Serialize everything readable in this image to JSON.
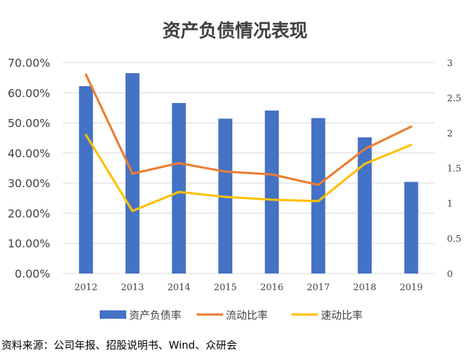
{
  "chart_data": {
    "type": "bar",
    "title": "资产负债情况表现",
    "categories": [
      "2012",
      "2013",
      "2014",
      "2015",
      "2016",
      "2017",
      "2018",
      "2019"
    ],
    "y_left": {
      "ylim": [
        0,
        70
      ],
      "ticks": [
        "0.00%",
        "10.00%",
        "20.00%",
        "30.00%",
        "40.00%",
        "50.00%",
        "60.00%",
        "70.00%"
      ]
    },
    "y_right": {
      "ylim": [
        0,
        3
      ],
      "ticks": [
        "0",
        "0.5",
        "1",
        "1.5",
        "2",
        "2.5",
        "3"
      ]
    },
    "series": [
      {
        "name": "资产负债率",
        "type": "bar",
        "axis": "left",
        "color": "#4472C4",
        "values": [
          62.2,
          66.5,
          56.6,
          51.4,
          54.1,
          51.6,
          45.2,
          30.4
        ]
      },
      {
        "name": "流动比率",
        "type": "line",
        "axis": "right",
        "color": "#ED7D31",
        "values": [
          2.83,
          1.42,
          1.57,
          1.45,
          1.41,
          1.26,
          1.77,
          2.09
        ]
      },
      {
        "name": "速动比率",
        "type": "line",
        "axis": "right",
        "color": "#FFC000",
        "values": [
          1.97,
          0.89,
          1.16,
          1.09,
          1.05,
          1.03,
          1.56,
          1.83
        ]
      }
    ],
    "legend_position": "bottom",
    "grid": true
  },
  "source_note": "资料来源：公司年报、招股说明书、Wind、众研会"
}
